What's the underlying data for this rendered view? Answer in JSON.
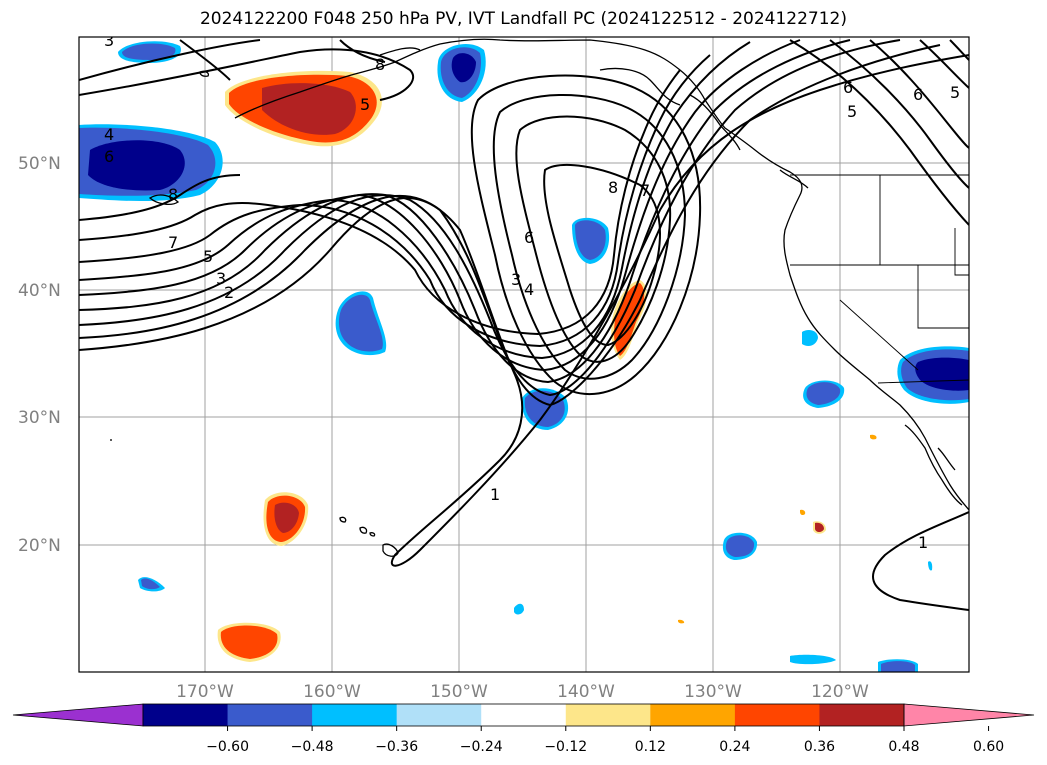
{
  "title": "2024122200 F048 250 hPa PV, IVT Landfall PC (2024122512 - 2024122712)",
  "latitude_labels": [
    "50°N",
    "40°N",
    "30°N",
    "20°N"
  ],
  "longitude_labels": [
    "170°W",
    "160°W",
    "150°W",
    "140°W",
    "130°W",
    "120°W"
  ],
  "colorbar": {
    "tick_labels": [
      "−0.60",
      "−0.48",
      "−0.36",
      "−0.24",
      "−0.12",
      "0.12",
      "0.24",
      "0.36",
      "0.48",
      "0.60"
    ],
    "colors": [
      "#9b30d0",
      "#00008b",
      "#3a5bcc",
      "#00bfff",
      "#b0e0f8",
      "#ffffff",
      "#fde68a",
      "#ffa500",
      "#ff4500",
      "#b22222",
      "#ff85a8"
    ]
  },
  "contour_labels": [
    "3",
    "4",
    "6",
    "8",
    "7",
    "5",
    "3",
    "2",
    "3",
    "4",
    "6",
    "8",
    "7",
    "1",
    "5",
    "6",
    "6",
    "5",
    "5",
    "8",
    "1"
  ]
}
